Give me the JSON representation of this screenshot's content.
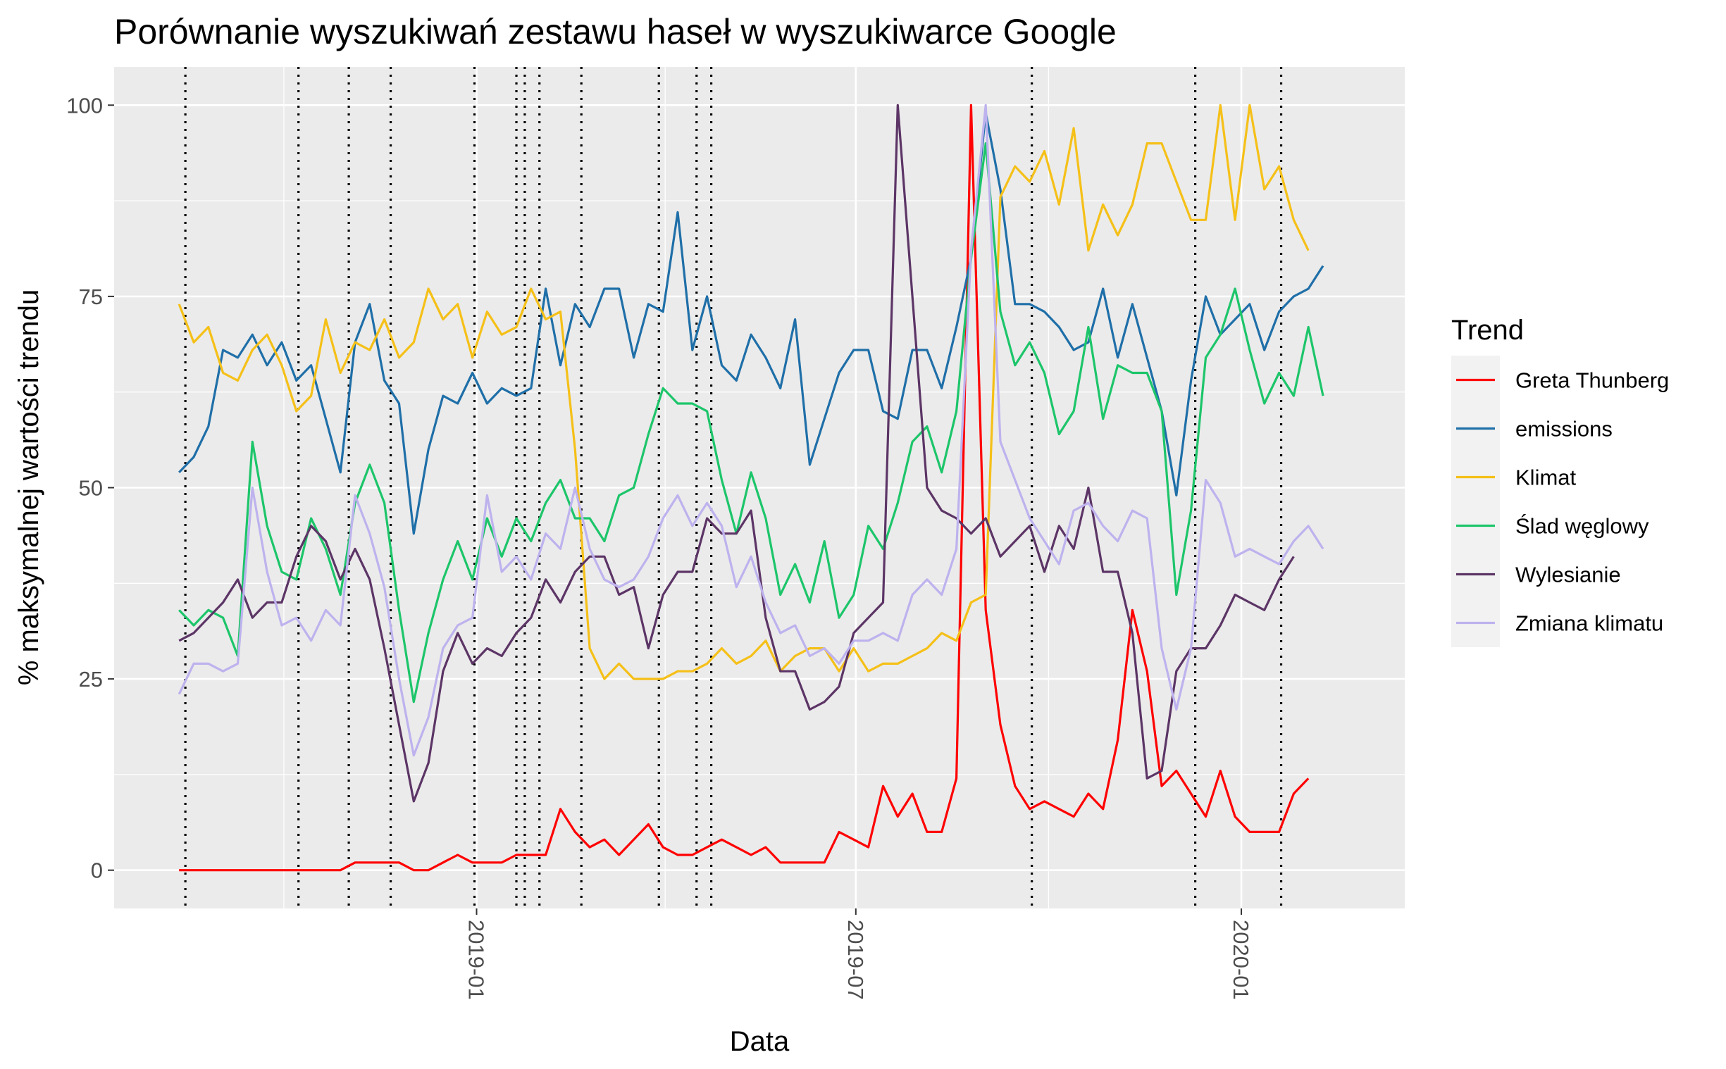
{
  "chart_data": {
    "type": "line",
    "title": "Porównanie wyszukiwań zestawu haseł w wyszukiwarce Google",
    "xlabel": "Data",
    "ylabel": "% maksymalnej wartości trendu",
    "x_start": "2018-08-12",
    "x_step_days": 7,
    "xlim": [
      "2018-07-12",
      "2020-03-19"
    ],
    "ylim": [
      -5,
      105
    ],
    "y_ticks": [
      0,
      25,
      50,
      75,
      100
    ],
    "x_ticks": [
      {
        "date": "2019-01-01",
        "label": "2019-01"
      },
      {
        "date": "2019-07-01",
        "label": "2019-07"
      },
      {
        "date": "2020-01-01",
        "label": "2020-01"
      }
    ],
    "x_minor_ticks": [
      "2018-10-01",
      "2019-04-01",
      "2019-10-01"
    ],
    "vlines": [
      "2018-08-15",
      "2018-10-08",
      "2018-11-01",
      "2018-11-21",
      "2018-12-31",
      "2019-01-20",
      "2019-01-24",
      "2019-01-31",
      "2019-02-20",
      "2019-03-29",
      "2019-04-16",
      "2019-04-23",
      "2019-09-23",
      "2019-12-10",
      "2020-01-20"
    ],
    "grid": true,
    "legend": {
      "title": "Trend",
      "position": "right"
    },
    "series": [
      {
        "name": "Greta Thunberg",
        "color": "#FF0000",
        "values": [
          0,
          0,
          0,
          0,
          0,
          0,
          0,
          0,
          0,
          0,
          0,
          0,
          1,
          1,
          1,
          1,
          0,
          0,
          1,
          2,
          1,
          1,
          1,
          2,
          2,
          2,
          8,
          5,
          3,
          4,
          2,
          4,
          6,
          3,
          2,
          2,
          3,
          4,
          3,
          2,
          3,
          1,
          1,
          1,
          1,
          5,
          4,
          3,
          11,
          7,
          10,
          5,
          5,
          12,
          100,
          34,
          19,
          11,
          8,
          9,
          8,
          7,
          10,
          8,
          17,
          34,
          26,
          11,
          13,
          10,
          7,
          13,
          7,
          5,
          5,
          5,
          10,
          12
        ]
      },
      {
        "name": "emissions",
        "color": "#1F6FA8",
        "values": [
          52,
          54,
          58,
          68,
          67,
          70,
          66,
          69,
          64,
          66,
          59,
          52,
          69,
          74,
          64,
          61,
          44,
          55,
          62,
          61,
          65,
          61,
          63,
          62,
          63,
          76,
          66,
          74,
          71,
          76,
          76,
          67,
          74,
          73,
          86,
          68,
          75,
          66,
          64,
          70,
          67,
          63,
          72,
          53,
          59,
          65,
          68,
          68,
          60,
          59,
          68,
          68,
          63,
          71,
          80,
          99,
          89,
          74,
          74,
          73,
          71,
          68,
          69,
          76,
          67,
          74,
          67,
          60,
          49,
          64,
          75,
          70,
          72,
          74,
          68,
          73,
          75,
          76,
          79
        ]
      },
      {
        "name": "Klimat",
        "color": "#F5C018",
        "values": [
          74,
          69,
          71,
          65,
          64,
          68,
          70,
          66,
          60,
          62,
          72,
          65,
          69,
          68,
          72,
          67,
          69,
          76,
          72,
          74,
          67,
          73,
          70,
          71,
          76,
          72,
          73,
          55,
          29,
          25,
          27,
          25,
          25,
          25,
          26,
          26,
          27,
          29,
          27,
          28,
          30,
          26,
          28,
          29,
          29,
          26,
          29,
          26,
          27,
          27,
          28,
          29,
          31,
          30,
          35,
          36,
          88,
          92,
          90,
          94,
          87,
          97,
          81,
          87,
          83,
          87,
          95,
          95,
          90,
          85,
          85,
          100,
          85,
          100,
          89,
          92,
          85,
          81
        ]
      },
      {
        "name": "Ślad węglowy",
        "color": "#1DC56A",
        "values": [
          34,
          32,
          34,
          33,
          28,
          56,
          45,
          39,
          38,
          46,
          42,
          36,
          48,
          53,
          48,
          34,
          22,
          31,
          38,
          43,
          38,
          46,
          41,
          46,
          43,
          48,
          51,
          46,
          46,
          43,
          49,
          50,
          57,
          63,
          61,
          61,
          60,
          51,
          44,
          52,
          46,
          36,
          40,
          35,
          43,
          33,
          36,
          45,
          42,
          48,
          56,
          58,
          52,
          60,
          80,
          95,
          73,
          66,
          69,
          65,
          57,
          60,
          71,
          59,
          66,
          65,
          65,
          60,
          36,
          47,
          67,
          70,
          76,
          68,
          61,
          65,
          62,
          71,
          62
        ]
      },
      {
        "name": "Wylesianie",
        "color": "#5C3566",
        "values": [
          30,
          31,
          33,
          35,
          38,
          33,
          35,
          35,
          41,
          45,
          43,
          38,
          42,
          38,
          29,
          19,
          9,
          14,
          26,
          31,
          27,
          29,
          28,
          31,
          33,
          38,
          35,
          39,
          41,
          41,
          36,
          37,
          29,
          36,
          39,
          39,
          46,
          44,
          44,
          47,
          33,
          26,
          26,
          21,
          22,
          24,
          31,
          33,
          35,
          100,
          75,
          50,
          47,
          46,
          44,
          46,
          41,
          43,
          45,
          39,
          45,
          42,
          50,
          39,
          39,
          31,
          12,
          13,
          26,
          29,
          29,
          32,
          36,
          35,
          34,
          38,
          41
        ]
      },
      {
        "name": "Zmiana klimatu",
        "color": "#BEB2EE",
        "values": [
          23,
          27,
          27,
          26,
          27,
          50,
          39,
          32,
          33,
          30,
          34,
          32,
          49,
          44,
          37,
          25,
          15,
          20,
          29,
          32,
          33,
          49,
          39,
          41,
          38,
          44,
          42,
          50,
          42,
          38,
          37,
          38,
          41,
          46,
          49,
          45,
          48,
          45,
          37,
          41,
          35,
          31,
          32,
          28,
          29,
          27,
          30,
          30,
          31,
          30,
          36,
          38,
          36,
          42,
          81,
          100,
          56,
          51,
          46,
          43,
          40,
          47,
          48,
          45,
          43,
          47,
          46,
          29,
          21,
          29,
          51,
          48,
          41,
          42,
          41,
          40,
          43,
          45,
          42
        ]
      }
    ]
  }
}
